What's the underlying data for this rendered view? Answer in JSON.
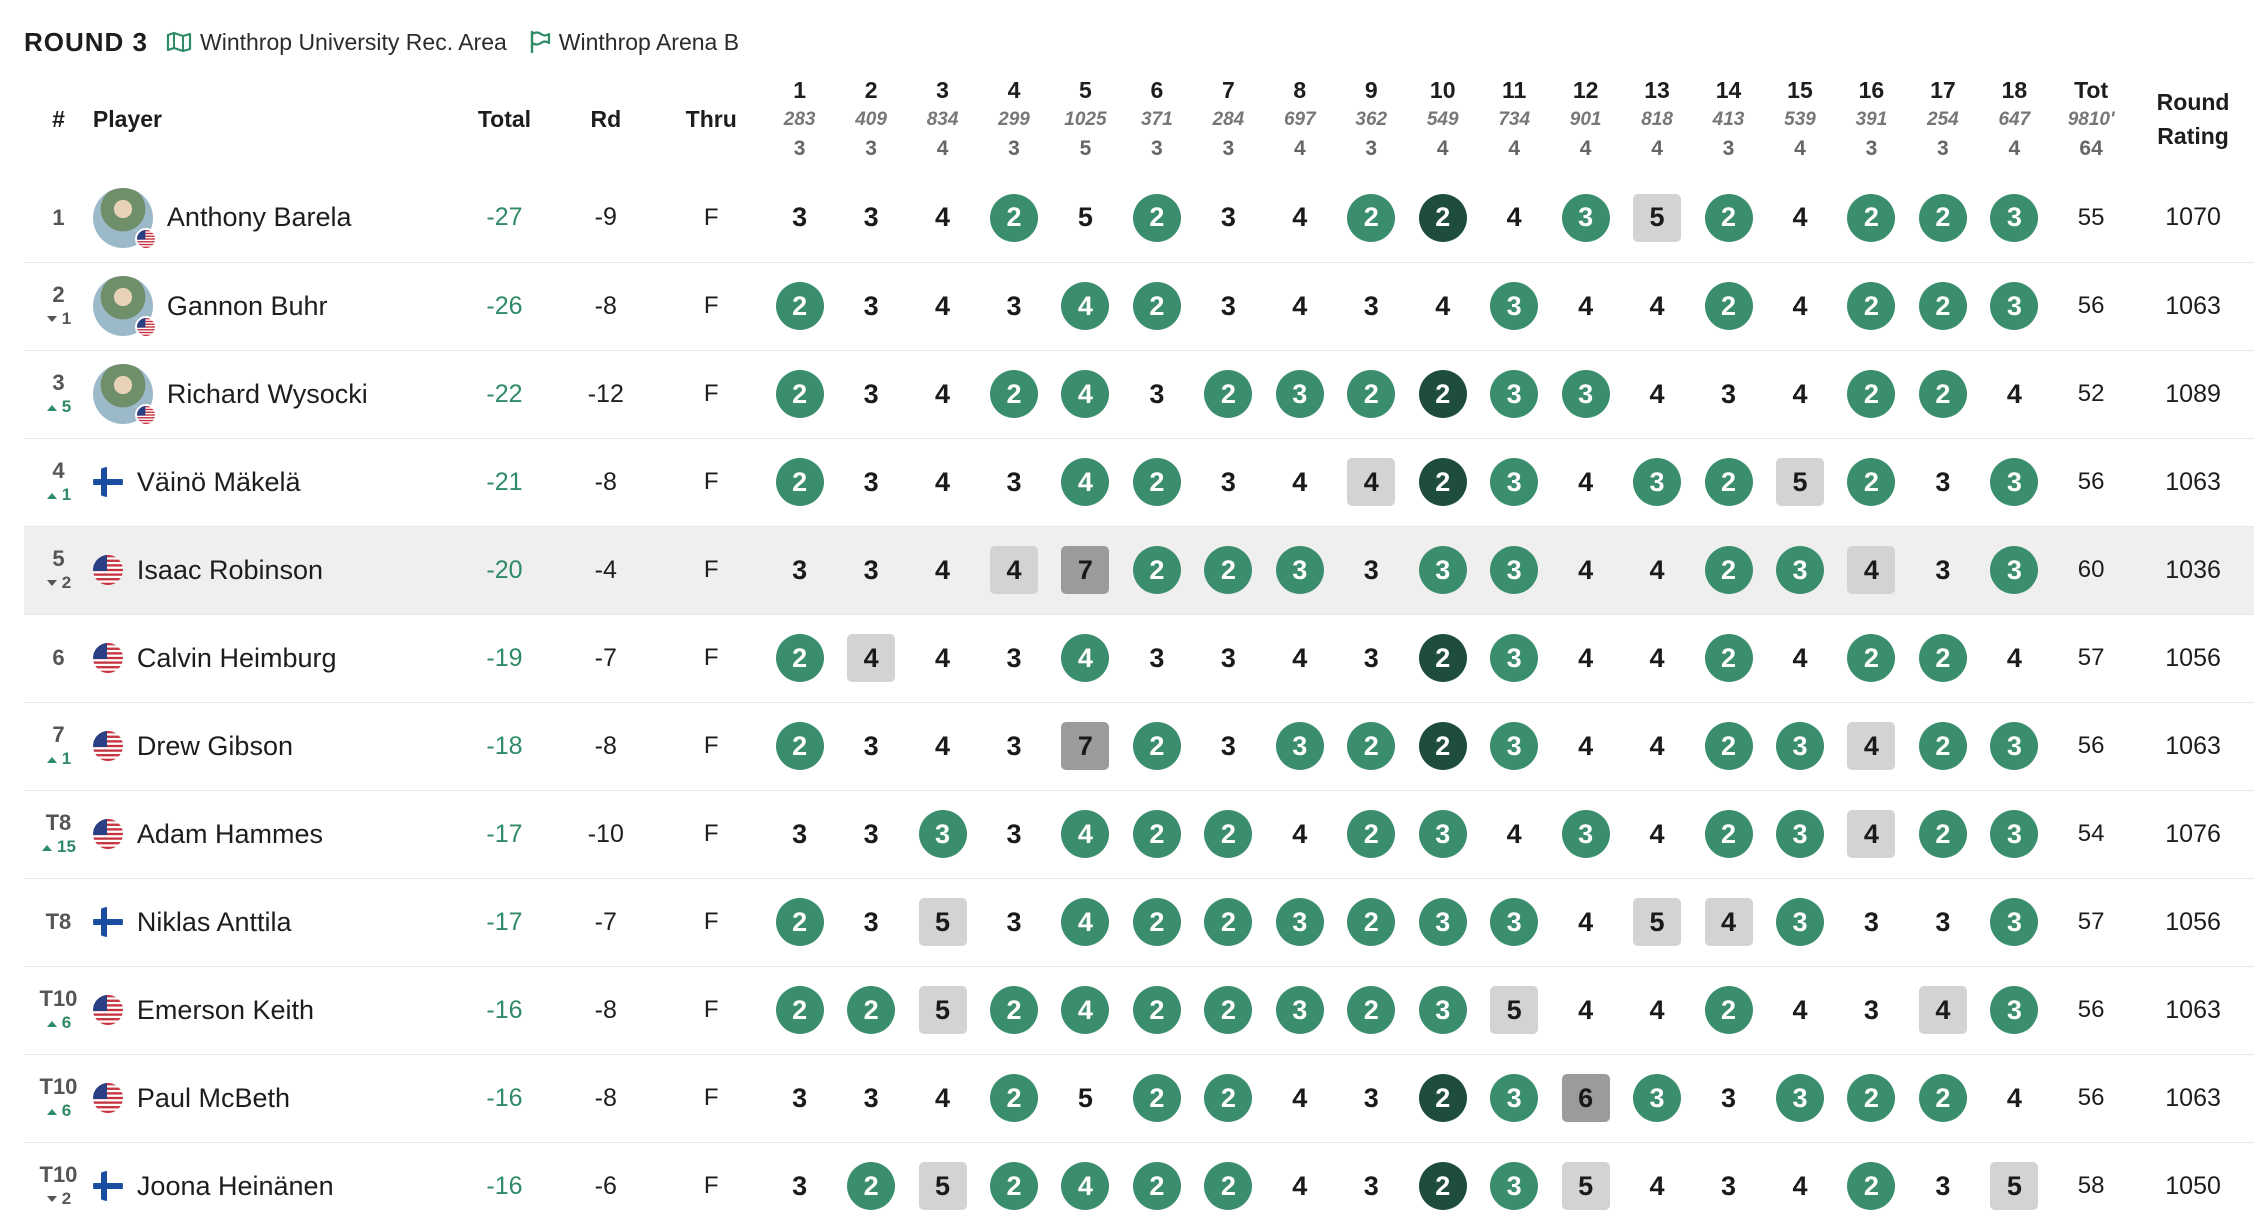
{
  "header": {
    "round": "ROUND 3",
    "course": "Winthrop University Rec. Area",
    "layout": "Winthrop Arena B"
  },
  "columns": {
    "pos": "#",
    "player": "Player",
    "total": "Total",
    "rd": "Rd",
    "thru": "Thru",
    "tot": "Tot",
    "rating_line1": "Round",
    "rating_line2": "Rating"
  },
  "holes": [
    {
      "num": "1",
      "dist": "283",
      "par": "3"
    },
    {
      "num": "2",
      "dist": "409",
      "par": "3"
    },
    {
      "num": "3",
      "dist": "834",
      "par": "4"
    },
    {
      "num": "4",
      "dist": "299",
      "par": "3"
    },
    {
      "num": "5",
      "dist": "1025",
      "par": "5"
    },
    {
      "num": "6",
      "dist": "371",
      "par": "3"
    },
    {
      "num": "7",
      "dist": "284",
      "par": "3"
    },
    {
      "num": "8",
      "dist": "697",
      "par": "4"
    },
    {
      "num": "9",
      "dist": "362",
      "par": "3"
    },
    {
      "num": "10",
      "dist": "549",
      "par": "4"
    },
    {
      "num": "11",
      "dist": "734",
      "par": "4"
    },
    {
      "num": "12",
      "dist": "901",
      "par": "4"
    },
    {
      "num": "13",
      "dist": "818",
      "par": "4"
    },
    {
      "num": "14",
      "dist": "413",
      "par": "3"
    },
    {
      "num": "15",
      "dist": "539",
      "par": "4"
    },
    {
      "num": "16",
      "dist": "391",
      "par": "3"
    },
    {
      "num": "17",
      "dist": "254",
      "par": "3"
    },
    {
      "num": "18",
      "dist": "647",
      "par": "4"
    }
  ],
  "course_total": {
    "dist": "9810'",
    "par": "64"
  },
  "colors": {
    "birdie": "#3a8e6d",
    "eagle": "#1f4d3c",
    "bogey": "#d3d3d3",
    "double_bogey": "#9b9b9b",
    "accent_green": "#2f8a66"
  },
  "players": [
    {
      "pos": "1",
      "move": "",
      "dir": "",
      "name": "Anthony Barela",
      "flag": "us",
      "avatar": true,
      "total": "-27",
      "rd": "-9",
      "thru": "F",
      "scores": [
        "3",
        "3",
        "4",
        "2",
        "5",
        "2",
        "3",
        "4",
        "2",
        "2",
        "4",
        "3",
        "5",
        "2",
        "4",
        "2",
        "2",
        "3"
      ],
      "tot": "55",
      "rating": "1070",
      "highlight": false
    },
    {
      "pos": "2",
      "move": "1",
      "dir": "down",
      "name": "Gannon Buhr",
      "flag": "us",
      "avatar": true,
      "total": "-26",
      "rd": "-8",
      "thru": "F",
      "scores": [
        "2",
        "3",
        "4",
        "3",
        "4",
        "2",
        "3",
        "4",
        "3",
        "4",
        "3",
        "4",
        "4",
        "2",
        "4",
        "2",
        "2",
        "3"
      ],
      "tot": "56",
      "rating": "1063",
      "highlight": false
    },
    {
      "pos": "3",
      "move": "5",
      "dir": "up",
      "name": "Richard Wysocki",
      "flag": "us",
      "avatar": true,
      "total": "-22",
      "rd": "-12",
      "thru": "F",
      "scores": [
        "2",
        "3",
        "4",
        "2",
        "4",
        "3",
        "2",
        "3",
        "2",
        "2",
        "3",
        "3",
        "4",
        "3",
        "4",
        "2",
        "2",
        "4"
      ],
      "tot": "52",
      "rating": "1089",
      "highlight": false
    },
    {
      "pos": "4",
      "move": "1",
      "dir": "up",
      "name": "Väinö Mäkelä",
      "flag": "fi",
      "avatar": false,
      "total": "-21",
      "rd": "-8",
      "thru": "F",
      "scores": [
        "2",
        "3",
        "4",
        "3",
        "4",
        "2",
        "3",
        "4",
        "4",
        "2",
        "3",
        "4",
        "3",
        "2",
        "5",
        "2",
        "3",
        "3"
      ],
      "tot": "56",
      "rating": "1063",
      "highlight": false
    },
    {
      "pos": "5",
      "move": "2",
      "dir": "down",
      "name": "Isaac Robinson",
      "flag": "us",
      "avatar": false,
      "total": "-20",
      "rd": "-4",
      "thru": "F",
      "scores": [
        "3",
        "3",
        "4",
        "4",
        "7",
        "2",
        "2",
        "3",
        "3",
        "3",
        "3",
        "4",
        "4",
        "2",
        "3",
        "4",
        "3",
        "3"
      ],
      "tot": "60",
      "rating": "1036",
      "highlight": true
    },
    {
      "pos": "6",
      "move": "",
      "dir": "",
      "name": "Calvin Heimburg",
      "flag": "us",
      "avatar": false,
      "total": "-19",
      "rd": "-7",
      "thru": "F",
      "scores": [
        "2",
        "4",
        "4",
        "3",
        "4",
        "3",
        "3",
        "4",
        "3",
        "2",
        "3",
        "4",
        "4",
        "2",
        "4",
        "2",
        "2",
        "4"
      ],
      "tot": "57",
      "rating": "1056",
      "highlight": false
    },
    {
      "pos": "7",
      "move": "1",
      "dir": "up",
      "name": "Drew Gibson",
      "flag": "us",
      "avatar": false,
      "total": "-18",
      "rd": "-8",
      "thru": "F",
      "scores": [
        "2",
        "3",
        "4",
        "3",
        "7",
        "2",
        "3",
        "3",
        "2",
        "2",
        "3",
        "4",
        "4",
        "2",
        "3",
        "4",
        "2",
        "3"
      ],
      "tot": "56",
      "rating": "1063",
      "highlight": false
    },
    {
      "pos": "T8",
      "move": "15",
      "dir": "up",
      "name": "Adam Hammes",
      "flag": "us",
      "avatar": false,
      "total": "-17",
      "rd": "-10",
      "thru": "F",
      "scores": [
        "3",
        "3",
        "3",
        "3",
        "4",
        "2",
        "2",
        "4",
        "2",
        "3",
        "4",
        "3",
        "4",
        "2",
        "3",
        "4",
        "2",
        "3"
      ],
      "tot": "54",
      "rating": "1076",
      "highlight": false
    },
    {
      "pos": "T8",
      "move": "",
      "dir": "",
      "name": "Niklas Anttila",
      "flag": "fi",
      "avatar": false,
      "total": "-17",
      "rd": "-7",
      "thru": "F",
      "scores": [
        "2",
        "3",
        "5",
        "3",
        "4",
        "2",
        "2",
        "3",
        "2",
        "3",
        "3",
        "4",
        "5",
        "4",
        "3",
        "3",
        "3",
        "3"
      ],
      "tot": "57",
      "rating": "1056",
      "highlight": false
    },
    {
      "pos": "T10",
      "move": "6",
      "dir": "up",
      "name": "Emerson Keith",
      "flag": "us",
      "avatar": false,
      "total": "-16",
      "rd": "-8",
      "thru": "F",
      "scores": [
        "2",
        "2",
        "5",
        "2",
        "4",
        "2",
        "2",
        "3",
        "2",
        "3",
        "5",
        "4",
        "4",
        "2",
        "4",
        "3",
        "4",
        "3"
      ],
      "tot": "56",
      "rating": "1063",
      "highlight": false
    },
    {
      "pos": "T10",
      "move": "6",
      "dir": "up",
      "name": "Paul McBeth",
      "flag": "us",
      "avatar": false,
      "total": "-16",
      "rd": "-8",
      "thru": "F",
      "scores": [
        "3",
        "3",
        "4",
        "2",
        "5",
        "2",
        "2",
        "4",
        "3",
        "2",
        "3",
        "6",
        "3",
        "3",
        "3",
        "2",
        "2",
        "4"
      ],
      "tot": "56",
      "rating": "1063",
      "highlight": false
    },
    {
      "pos": "T10",
      "move": "2",
      "dir": "down",
      "name": "Joona Heinänen",
      "flag": "fi",
      "avatar": false,
      "total": "-16",
      "rd": "-6",
      "thru": "F",
      "scores": [
        "3",
        "2",
        "5",
        "2",
        "4",
        "2",
        "2",
        "4",
        "3",
        "2",
        "3",
        "5",
        "4",
        "3",
        "4",
        "2",
        "3",
        "5"
      ],
      "tot": "58",
      "rating": "1050",
      "highlight": false
    }
  ]
}
